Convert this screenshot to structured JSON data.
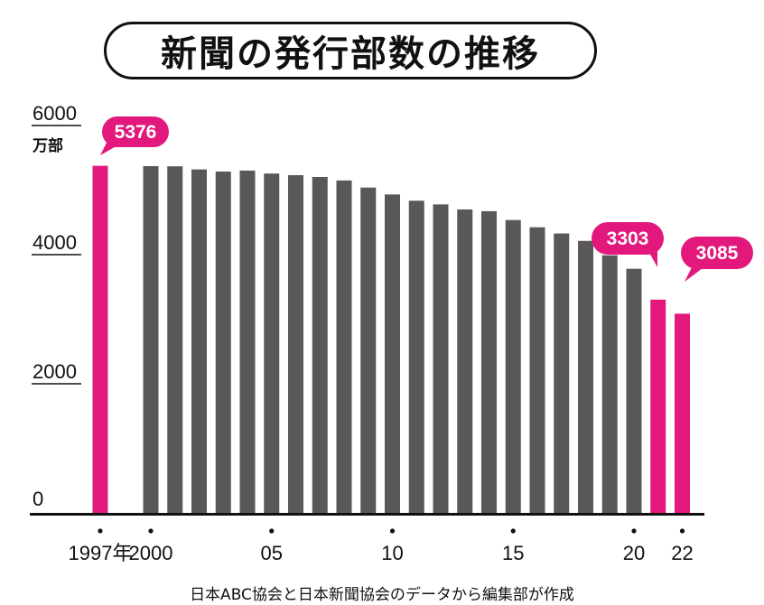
{
  "title": "新聞の発行部数の推移",
  "source": "日本ABC協会と日本新聞協会のデータから編集部が作成",
  "colors": {
    "highlight": "#e3187c",
    "bar": "#595757",
    "axis": "#111111"
  },
  "chart_data": {
    "type": "bar",
    "unit": "万部",
    "ylim": [
      0,
      6000
    ],
    "y_ticks": [
      "0",
      "2000",
      "4000",
      "6000"
    ],
    "x": [
      1997,
      2000,
      2001,
      2002,
      2003,
      2004,
      2005,
      2006,
      2007,
      2008,
      2009,
      2010,
      2011,
      2012,
      2013,
      2014,
      2015,
      2016,
      2017,
      2018,
      2019,
      2020,
      2021,
      2022
    ],
    "values": [
      5376,
      5371,
      5368,
      5320,
      5287,
      5302,
      5256,
      5231,
      5203,
      5149,
      5039,
      4932,
      4835,
      4778,
      4700,
      4673,
      4536,
      4424,
      4328,
      4213,
      3990,
      3781,
      3303,
      3085
    ],
    "highlighted": [
      1997,
      2021,
      2022
    ],
    "x_tick_labels": [
      {
        "year": 1997,
        "label": "1997年"
      },
      {
        "year": 2000,
        "label": "2000"
      },
      {
        "year": 2005,
        "label": "05"
      },
      {
        "year": 2010,
        "label": "10"
      },
      {
        "year": 2015,
        "label": "15"
      },
      {
        "year": 2020,
        "label": "20"
      },
      {
        "year": 2022,
        "label": "22"
      }
    ],
    "callouts": [
      {
        "year": 1997,
        "label": "5376"
      },
      {
        "year": 2021,
        "label": "3303"
      },
      {
        "year": 2022,
        "label": "3085"
      }
    ]
  }
}
